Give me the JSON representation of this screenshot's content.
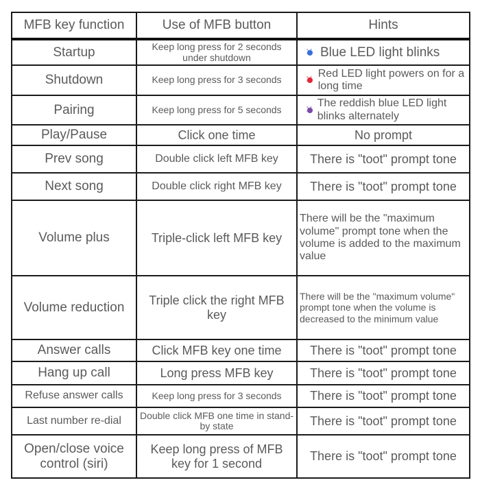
{
  "headers": [
    "MFB key function",
    "Use of MFB button",
    "Hints"
  ],
  "colors": {
    "blue_led": "#3a6fd8",
    "red_led": "#e0283c",
    "mixed_led": "#7a4aa8"
  },
  "rows": [
    {
      "function": "Startup",
      "use": "Keep long press for 2 seconds under shutdown",
      "hint": "Blue LED light blinks",
      "icon": "blue-led-icon"
    },
    {
      "function": "Shutdown",
      "use": "Keep long press for 3 seconds",
      "hint": "Red LED light powers on for a long time",
      "icon": "red-led-icon"
    },
    {
      "function": "Pairing",
      "use": "Keep long press for 5 seconds",
      "hint": "The reddish blue LED light blinks alternately",
      "icon": "red-blue-led-icon"
    },
    {
      "function": "Play/Pause",
      "use": "Click one time",
      "hint": "No prompt"
    },
    {
      "function": "Prev song",
      "use": "Double click left MFB key",
      "hint": "There is \"toot\" prompt tone"
    },
    {
      "function": "Next song",
      "use": "Double click right MFB key",
      "hint": "There is \"toot\" prompt tone"
    },
    {
      "function": "Volume plus",
      "use": "Triple-click left MFB key",
      "hint": "There will be the \"maximum volume\" prompt tone when the volume is added to the maximum value"
    },
    {
      "function": "Volume reduction",
      "use": "Triple click the right MFB key",
      "hint": "There will be the \"maximum volume\" prompt tone when the volume is decreased to the minimum value"
    },
    {
      "function": "Answer calls",
      "use": "Click MFB key one time",
      "hint": "There is \"toot\" prompt tone"
    },
    {
      "function": "Hang up call",
      "use": "Long press MFB key",
      "hint": "There is \"toot\" prompt tone"
    },
    {
      "function": "Refuse answer calls",
      "use": "Keep long press for 3 seconds",
      "hint": "There is \"toot\" prompt tone"
    },
    {
      "function": "Last number re-dial",
      "use": "Double click MFB one time in stand-by state",
      "hint": "There is \"toot\" prompt tone"
    },
    {
      "function": "Open/close voice control (siri)",
      "use": "Keep long press of MFB key for 1 second",
      "hint": "There is \"toot\" prompt tone"
    }
  ]
}
